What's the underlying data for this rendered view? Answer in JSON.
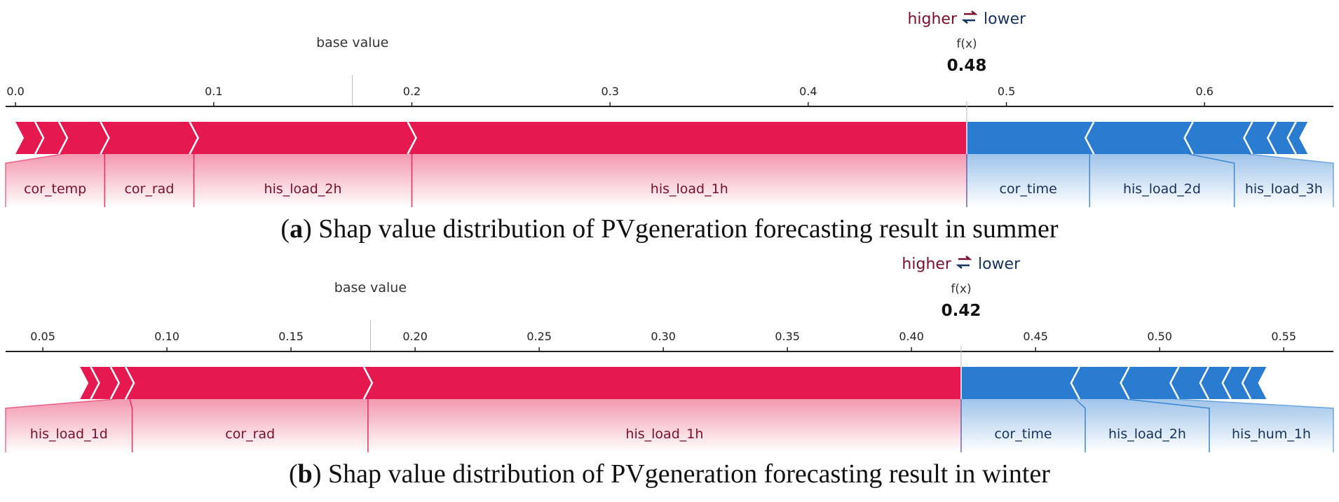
{
  "legend": {
    "higher": "higher",
    "lower": "lower",
    "swap_icon": "swap-arrows-icon",
    "higher_color": "#7a0f2b",
    "lower_color": "#16325c"
  },
  "colors": {
    "positive": "#e5194f",
    "negative": "#2a7cd0"
  },
  "chart_data": [
    {
      "type": "force-plot",
      "caption_bold": "a",
      "caption_text": " Shap value distribution of PVgeneration forecasting result in summer",
      "base_value_label": "base value",
      "base_value": 0.17,
      "fx_label": "f(x)",
      "output_value": 0.48,
      "output_label": "0.48",
      "xlim": [
        -0.005,
        0.665
      ],
      "ticks": [
        {
          "value": 0.0,
          "label": "0.0"
        },
        {
          "value": 0.1,
          "label": "0.1"
        },
        {
          "value": 0.2,
          "label": "0.2"
        },
        {
          "value": 0.3,
          "label": "0.3"
        },
        {
          "value": 0.4,
          "label": "0.4"
        },
        {
          "value": 0.5,
          "label": "0.5"
        },
        {
          "value": 0.6,
          "label": "0.6"
        }
      ],
      "positive_range": [
        0.0,
        0.48
      ],
      "positive_breaks": [
        0.012,
        0.024,
        0.045,
        0.09,
        0.2
      ],
      "negative_range": [
        0.48,
        0.652
      ],
      "negative_breaks": [
        0.542,
        0.592,
        0.622,
        0.634,
        0.644
      ],
      "features": [
        {
          "name": "cor_temp",
          "side": "pos",
          "seg": [
            0.024,
            0.045
          ],
          "lab": [
            -0.02,
            0.045
          ]
        },
        {
          "name": "cor_rad",
          "side": "pos",
          "seg": [
            0.045,
            0.09
          ],
          "lab": [
            0.045,
            0.09
          ]
        },
        {
          "name": "his_load_2h",
          "side": "pos",
          "seg": [
            0.09,
            0.2
          ],
          "lab": [
            0.09,
            0.2
          ]
        },
        {
          "name": "his_load_1h",
          "side": "pos",
          "seg": [
            0.2,
            0.48
          ],
          "lab": [
            0.2,
            0.48
          ]
        },
        {
          "name": "cor_time",
          "side": "neg",
          "seg": [
            0.48,
            0.542
          ],
          "lab": [
            0.48,
            0.542
          ]
        },
        {
          "name": "his_load_2d",
          "side": "neg",
          "seg": [
            0.542,
            0.592
          ],
          "lab": [
            0.542,
            0.615
          ]
        },
        {
          "name": "his_load_3h",
          "side": "neg",
          "seg": [
            0.592,
            0.622
          ],
          "lab": [
            0.615,
            0.692
          ]
        }
      ]
    },
    {
      "type": "force-plot",
      "caption_bold": "b",
      "caption_text": " Shap value distribution of PVgeneration forecasting result in winter",
      "base_value_label": "base value",
      "base_value": 0.182,
      "fx_label": "f(x)",
      "output_value": 0.42,
      "output_label": "0.42",
      "xlim": [
        0.035,
        0.57
      ],
      "ticks": [
        {
          "value": 0.05,
          "label": "0.05"
        },
        {
          "value": 0.1,
          "label": "0.10"
        },
        {
          "value": 0.15,
          "label": "0.15"
        },
        {
          "value": 0.2,
          "label": "0.20"
        },
        {
          "value": 0.25,
          "label": "0.25"
        },
        {
          "value": 0.3,
          "label": "0.30"
        },
        {
          "value": 0.35,
          "label": "0.35"
        },
        {
          "value": 0.4,
          "label": "0.40"
        },
        {
          "value": 0.45,
          "label": "0.45"
        },
        {
          "value": 0.5,
          "label": "0.50"
        },
        {
          "value": 0.55,
          "label": "0.55"
        }
      ],
      "positive_range": [
        0.065,
        0.42
      ],
      "positive_breaks": [
        0.071,
        0.079,
        0.085,
        0.181
      ],
      "negative_range": [
        0.42,
        0.543
      ],
      "negative_breaks": [
        0.466,
        0.486,
        0.506,
        0.518,
        0.527,
        0.535
      ],
      "features": [
        {
          "name": "his_load_1d",
          "side": "pos",
          "seg": [
            0.079,
            0.085
          ],
          "lab": [
            0.035,
            0.086
          ]
        },
        {
          "name": "cor_rad",
          "side": "pos",
          "seg": [
            0.085,
            0.181
          ],
          "lab": [
            0.086,
            0.181
          ]
        },
        {
          "name": "his_load_1h",
          "side": "pos",
          "seg": [
            0.181,
            0.42
          ],
          "lab": [
            0.181,
            0.42
          ]
        },
        {
          "name": "cor_time",
          "side": "neg",
          "seg": [
            0.42,
            0.466
          ],
          "lab": [
            0.42,
            0.47
          ]
        },
        {
          "name": "his_load_2h",
          "side": "neg",
          "seg": [
            0.466,
            0.486
          ],
          "lab": [
            0.47,
            0.52
          ]
        },
        {
          "name": "his_hum_1h",
          "side": "neg",
          "seg": [
            0.486,
            0.506
          ],
          "lab": [
            0.52,
            0.57
          ]
        }
      ]
    }
  ]
}
